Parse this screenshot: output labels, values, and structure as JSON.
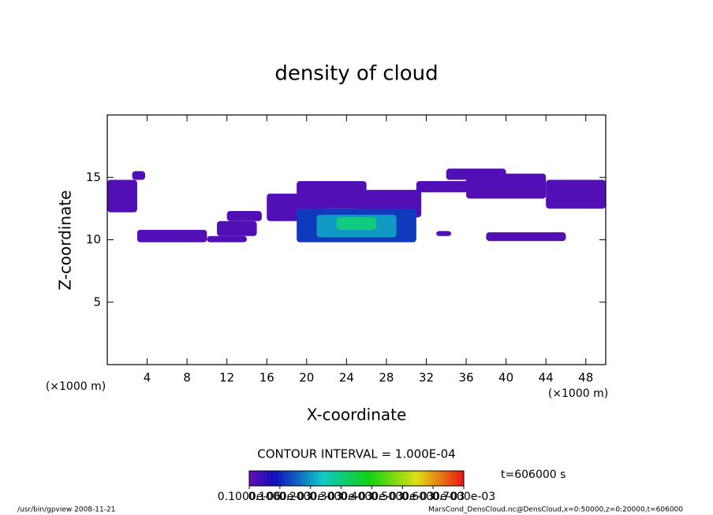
{
  "chart_data": {
    "type": "heatmap",
    "title": "density of cloud",
    "x_label": "X-coordinate",
    "y_label": "Z-coordinate",
    "x_unit": "(×1000 m)",
    "y_unit": "(×1000 m)",
    "xlim": [
      0,
      50
    ],
    "ylim": [
      0,
      20
    ],
    "xticks": [
      4,
      8,
      12,
      16,
      20,
      24,
      28,
      32,
      36,
      40,
      44,
      48
    ],
    "yticks": [
      5,
      10,
      15
    ],
    "patches": [
      {
        "x": [
          0,
          3
        ],
        "z": [
          12.2,
          14.8
        ],
        "value": 2e-05
      },
      {
        "x": [
          2.5,
          3.8
        ],
        "z": [
          14.8,
          15.5
        ],
        "value": 2e-05
      },
      {
        "x": [
          3,
          10
        ],
        "z": [
          9.8,
          10.8
        ],
        "value": 2e-05
      },
      {
        "x": [
          10,
          14
        ],
        "z": [
          9.8,
          10.3
        ],
        "value": 2e-05
      },
      {
        "x": [
          11,
          15
        ],
        "z": [
          10.3,
          11.5
        ],
        "value": 2e-05
      },
      {
        "x": [
          12,
          15.5
        ],
        "z": [
          11.5,
          12.3
        ],
        "value": 2e-05
      },
      {
        "x": [
          16,
          22
        ],
        "z": [
          11.5,
          13.7
        ],
        "value": 2e-05
      },
      {
        "x": [
          19,
          26
        ],
        "z": [
          12.5,
          14.7
        ],
        "value": 2e-05
      },
      {
        "x": [
          25,
          31.5
        ],
        "z": [
          11.8,
          14
        ],
        "value": 2e-05
      },
      {
        "x": [
          19,
          31
        ],
        "z": [
          9.8,
          12.5
        ],
        "value": 0.00012
      },
      {
        "x": [
          21,
          29
        ],
        "z": [
          10.2,
          12
        ],
        "value": 0.0002
      },
      {
        "x": [
          23,
          27
        ],
        "z": [
          10.8,
          11.8
        ],
        "value": 0.0003
      },
      {
        "x": [
          31,
          40
        ],
        "z": [
          13.8,
          14.7
        ],
        "value": 2e-05
      },
      {
        "x": [
          36,
          44
        ],
        "z": [
          13.3,
          15.3
        ],
        "value": 2e-05
      },
      {
        "x": [
          34,
          40
        ],
        "z": [
          14.8,
          15.7
        ],
        "value": 2e-05
      },
      {
        "x": [
          44,
          50
        ],
        "z": [
          12.5,
          14.8
        ],
        "value": 2e-05
      },
      {
        "x": [
          38,
          46
        ],
        "z": [
          9.9,
          10.6
        ],
        "value": 2e-05
      },
      {
        "x": [
          33,
          34.5
        ],
        "z": [
          10.3,
          10.7
        ],
        "value": 2e-05
      }
    ],
    "contour_interval": "CONTOUR INTERVAL = 1.000E-04",
    "time_label": "t=606000 s",
    "crange": [
      0,
      0.0007
    ],
    "cticks": [
      {
        "value": 1e-07,
        "label": "0.1000e-06"
      },
      {
        "value": 0.0001,
        "label": "0.1000e-03"
      },
      {
        "value": 0.0002,
        "label": "0.2000e-03"
      },
      {
        "value": 0.0003,
        "label": "0.3000e-03"
      },
      {
        "value": 0.0004,
        "label": "0.4000e-03"
      },
      {
        "value": 0.0005,
        "label": "0.5000e-03"
      },
      {
        "value": 0.0006,
        "label": "0.6000e-03"
      },
      {
        "value": 0.0007,
        "label": "0.7000e-03"
      }
    ],
    "footer_left": "/usr/bin/gpview  2008-11-21",
    "footer_right": "MarsCond_DensCloud.nc@DensCloud,x=0:50000,z=0:20000,t=606000"
  }
}
